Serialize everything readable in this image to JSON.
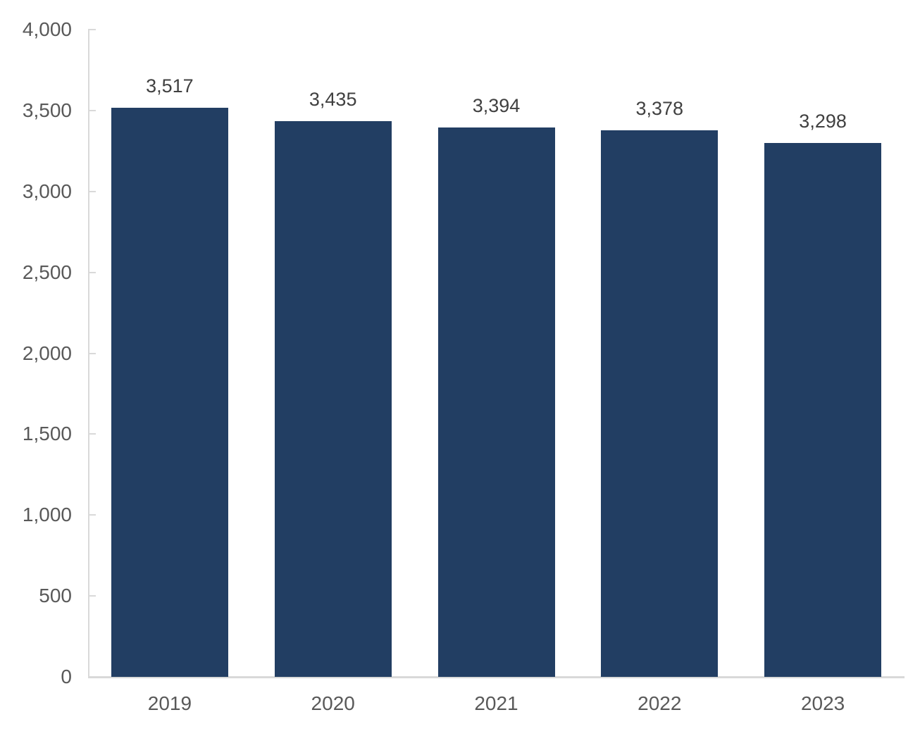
{
  "chart_data": {
    "type": "bar",
    "categories": [
      "2019",
      "2020",
      "2021",
      "2022",
      "2023"
    ],
    "values": [
      3517,
      3435,
      3394,
      3378,
      3298
    ],
    "value_labels": [
      "3,517",
      "3,435",
      "3,394",
      "3,378",
      "3,298"
    ],
    "title": "",
    "xlabel": "",
    "ylabel": "",
    "ylim": [
      0,
      4000
    ],
    "y_tick_interval": 500,
    "y_ticks": [
      {
        "value": 4000,
        "label": "4,000"
      },
      {
        "value": 3500,
        "label": "3,500"
      },
      {
        "value": 3000,
        "label": "3,000"
      },
      {
        "value": 2500,
        "label": "2,500"
      },
      {
        "value": 2000,
        "label": "2,000"
      },
      {
        "value": 1500,
        "label": "1,500"
      },
      {
        "value": 1000,
        "label": "1,000"
      },
      {
        "value": 500,
        "label": "500"
      },
      {
        "value": 0,
        "label": "0"
      }
    ],
    "grid": false,
    "legend": false,
    "colors": {
      "bar": "#223E63",
      "axis_line": "#d9d9d9",
      "tick_label": "#595959",
      "data_label": "#404040"
    }
  }
}
